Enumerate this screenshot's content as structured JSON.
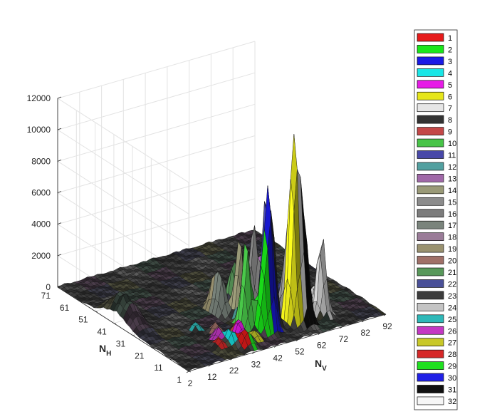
{
  "chart_data": {
    "type": "surface3d",
    "title": "",
    "xlabel": "N_V",
    "ylabel": "N_H",
    "zlabel": "",
    "x_ticks": [
      "2",
      "12",
      "22",
      "32",
      "42",
      "52",
      "62",
      "72",
      "82",
      "92"
    ],
    "y_ticks": [
      "1",
      "11",
      "21",
      "31",
      "41",
      "51",
      "61",
      "71"
    ],
    "z_ticks": [
      "0",
      "2000",
      "4000",
      "6000",
      "8000",
      "10000",
      "12000"
    ],
    "xlim": [
      2,
      92
    ],
    "ylim": [
      1,
      71
    ],
    "zlim": [
      0,
      12000
    ],
    "grid": true,
    "legend_position": "right",
    "series": [
      {
        "name": "1",
        "color": "#e61a1a",
        "nv_center": 31,
        "nh_center": 6,
        "peak": 800
      },
      {
        "name": "2",
        "color": "#1ae61a",
        "nv_center": 44,
        "nh_center": 11,
        "peak": 3600
      },
      {
        "name": "3",
        "color": "#1a1ae6",
        "nv_center": 47,
        "nh_center": 11,
        "peak": 8700
      },
      {
        "name": "4",
        "color": "#1ae6e6",
        "nv_center": 28,
        "nh_center": 9,
        "peak": 1000
      },
      {
        "name": "5",
        "color": "#e61ae6",
        "nv_center": 34,
        "nh_center": 11,
        "peak": 900
      },
      {
        "name": "6",
        "color": "#e6e61a",
        "nv_center": 58,
        "nh_center": 11,
        "peak": 8200
      },
      {
        "name": "7",
        "color": "#e6e6e6",
        "nv_center": 60,
        "nh_center": 11,
        "peak": 7400
      },
      {
        "name": "8",
        "color": "#333333",
        "nv_center": 50,
        "nh_center": 13,
        "peak": 6900
      },
      {
        "name": "9",
        "color": "#c44848",
        "nv_center": 35,
        "nh_center": 14,
        "peak": 700
      },
      {
        "name": "10",
        "color": "#48c448",
        "nv_center": 41,
        "nh_center": 16,
        "peak": 5600
      },
      {
        "name": "11",
        "color": "#4848a8",
        "nv_center": 52,
        "nh_center": 18,
        "peak": 8100
      },
      {
        "name": "12",
        "color": "#52a0a0",
        "nv_center": 42,
        "nh_center": 20,
        "peak": 700
      },
      {
        "name": "13",
        "color": "#a068a8",
        "nv_center": 55,
        "nh_center": 21,
        "peak": 6800
      },
      {
        "name": "14",
        "color": "#9a9a78",
        "nv_center": 44,
        "nh_center": 23,
        "peak": 5100
      },
      {
        "name": "15",
        "color": "#8c8c8c",
        "nv_center": 58,
        "nh_center": 15,
        "peak": 3200
      },
      {
        "name": "16",
        "color": "#7c7c7c",
        "nv_center": 53,
        "nh_center": 26,
        "peak": 5400
      },
      {
        "name": "17",
        "color": "#7a847c",
        "nv_center": 40,
        "nh_center": 28,
        "peak": 2600
      },
      {
        "name": "18",
        "color": "#9a7c98",
        "nv_center": 57,
        "nh_center": 30,
        "peak": 2800
      },
      {
        "name": "19",
        "color": "#9a9270",
        "nv_center": 40,
        "nh_center": 32,
        "peak": 2000
      },
      {
        "name": "20",
        "color": "#a07068",
        "nv_center": 29,
        "nh_center": 18,
        "peak": 700
      },
      {
        "name": "21",
        "color": "#58985a",
        "nv_center": 51,
        "nh_center": 34,
        "peak": 2600
      },
      {
        "name": "22",
        "color": "#4a5098",
        "nv_center": 63,
        "nh_center": 24,
        "peak": 1600
      },
      {
        "name": "23",
        "color": "#3c3c3c",
        "nv_center": 67,
        "nh_center": 19,
        "peak": 5500
      },
      {
        "name": "24",
        "color": "#c4c4c4",
        "nv_center": 72,
        "nh_center": 12,
        "peak": 5200
      },
      {
        "name": "25",
        "color": "#2eb8b8",
        "nv_center": 24,
        "nh_center": 23,
        "peak": 500
      },
      {
        "name": "26",
        "color": "#c438c4",
        "nv_center": 26,
        "nh_center": 13,
        "peak": 800
      },
      {
        "name": "27",
        "color": "#c8c828",
        "nv_center": 38,
        "nh_center": 8,
        "peak": 600
      },
      {
        "name": "28",
        "color": "#d62828",
        "nv_center": 23,
        "nh_center": 9,
        "peak": 600
      },
      {
        "name": "29",
        "color": "#20e020",
        "nv_center": 33,
        "nh_center": 5,
        "peak": 700
      },
      {
        "name": "30",
        "color": "#2020e6",
        "nv_center": 66,
        "nh_center": 28,
        "peak": 600
      },
      {
        "name": "31",
        "color": "#101010",
        "nv_center": 62,
        "nh_center": 9,
        "peak": 5200
      },
      {
        "name": "32",
        "color": "#f6f6f6",
        "nv_center": 75,
        "nh_center": 19,
        "peak": 1300
      }
    ],
    "secondary_ridge": {
      "nv_center": 6,
      "nh_center": 40,
      "peak": 1900
    }
  }
}
